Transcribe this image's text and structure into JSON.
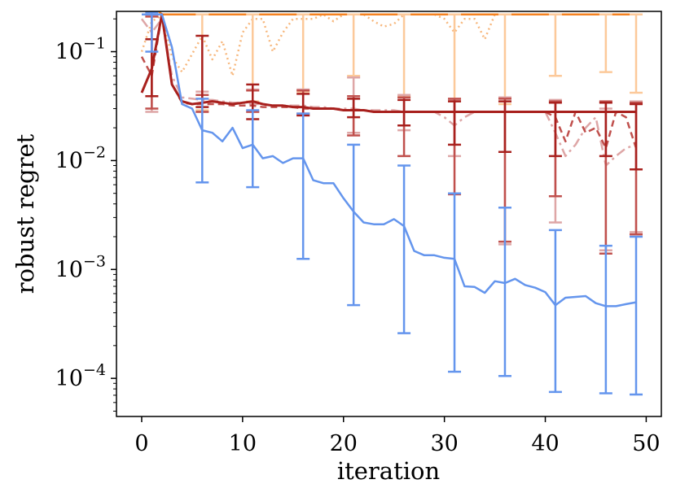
{
  "chart_data": {
    "type": "line",
    "xlabel": "iteration",
    "ylabel": "robust regret",
    "xlim": [
      -2.5,
      51.5
    ],
    "ylim_log10": [
      -4.35,
      -0.63
    ],
    "y_scale": "log",
    "x_ticks": [
      0,
      10,
      20,
      30,
      40,
      50
    ],
    "x_tick_labels": [
      "0",
      "10",
      "20",
      "30",
      "40",
      "50"
    ],
    "y_ticks": [
      {
        "value": 0.1,
        "base": "10",
        "exponent": "−1"
      },
      {
        "value": 0.01,
        "base": "10",
        "exponent": "−2"
      },
      {
        "value": 0.001,
        "base": "10",
        "exponent": "−3"
      },
      {
        "value": 0.0001,
        "base": "10",
        "exponent": "−4"
      }
    ],
    "series": [
      {
        "name": "orange-dotted",
        "color": "#f7b77c",
        "dash": "2 4",
        "width": 2.5,
        "x": [
          0,
          1,
          2,
          3,
          4,
          5,
          6,
          7,
          8,
          9,
          10,
          11,
          12,
          13,
          14,
          15,
          16,
          17,
          18,
          19,
          20,
          21,
          22,
          23,
          24,
          25,
          26,
          27,
          28,
          29,
          30,
          31,
          32,
          33,
          34,
          35,
          36,
          37,
          38,
          39,
          40,
          41,
          42,
          43,
          44,
          45,
          46,
          47,
          48,
          49
        ],
        "y": [
          0.1,
          0.19,
          0.215,
          0.09,
          0.065,
          0.095,
          0.14,
          0.085,
          0.125,
          0.06,
          0.15,
          0.2,
          0.2,
          0.1,
          0.15,
          0.2,
          0.2,
          0.2,
          0.22,
          0.19,
          0.22,
          0.22,
          0.22,
          0.19,
          0.17,
          0.18,
          0.22,
          0.22,
          0.22,
          0.22,
          0.2,
          0.15,
          0.2,
          0.2,
          0.13,
          0.22,
          0.22,
          0.22,
          0.22,
          0.22,
          0.22,
          0.22,
          0.22,
          0.22,
          0.22,
          0.22,
          0.22,
          0.22,
          0.22,
          0.22
        ],
        "errorbars": []
      },
      {
        "name": "orange-solid",
        "color": "#f58220",
        "dash": "",
        "width": 2.5,
        "x": [
          0,
          1,
          2,
          3,
          4,
          5,
          6,
          7,
          8,
          9,
          10,
          11,
          12,
          13,
          14,
          15,
          16,
          17,
          18,
          19,
          20,
          21,
          22,
          23,
          24,
          25,
          26,
          27,
          28,
          29,
          30,
          31,
          32,
          33,
          34,
          35,
          36,
          37,
          38,
          39,
          40,
          41,
          42,
          43,
          44,
          45,
          46,
          47,
          48,
          49
        ],
        "y": [
          0.24,
          0.27,
          0.22,
          0.22,
          0.22,
          0.22,
          0.22,
          0.22,
          0.22,
          0.22,
          0.22,
          0.22,
          0.22,
          0.22,
          0.22,
          0.22,
          0.22,
          0.22,
          0.22,
          0.22,
          0.22,
          0.22,
          0.22,
          0.22,
          0.22,
          0.22,
          0.22,
          0.22,
          0.22,
          0.22,
          0.22,
          0.22,
          0.22,
          0.22,
          0.22,
          0.22,
          0.22,
          0.22,
          0.22,
          0.22,
          0.22,
          0.22,
          0.22,
          0.22,
          0.22,
          0.22,
          0.22,
          0.22,
          0.22,
          0.22
        ],
        "errorbars": [
          {
            "x": 1,
            "lo": 0.24,
            "hi": 0.29
          }
        ]
      },
      {
        "name": "orange-light-errorbars",
        "color": "#fcc99a",
        "dash": "none",
        "width": 2.5,
        "x": [],
        "y": [],
        "errorbars": [
          {
            "x": 6,
            "lo": 0.029,
            "hi": 0.22
          },
          {
            "x": 11,
            "lo": 0.035,
            "hi": 0.22
          },
          {
            "x": 16,
            "lo": 0.043,
            "hi": 0.22
          },
          {
            "x": 21,
            "lo": 0.06,
            "hi": 0.22
          },
          {
            "x": 26,
            "lo": 0.039,
            "hi": 0.22
          },
          {
            "x": 31,
            "lo": 0.035,
            "hi": 0.22
          },
          {
            "x": 36,
            "lo": 0.033,
            "hi": 0.22
          },
          {
            "x": 41,
            "lo": 0.06,
            "hi": 0.22
          },
          {
            "x": 46,
            "lo": 0.065,
            "hi": 0.22
          },
          {
            "x": 49,
            "lo": 0.042,
            "hi": 0.22
          }
        ]
      },
      {
        "name": "pink-dashdot",
        "color": "#dea6a6",
        "dash": "12 5 3 5",
        "width": 2.5,
        "x": [
          0,
          1,
          2,
          3,
          4,
          5,
          6,
          7,
          8,
          9,
          10,
          11,
          12,
          13,
          14,
          15,
          16,
          17,
          18,
          19,
          20,
          21,
          22,
          23,
          24,
          25,
          26,
          27,
          28,
          29,
          30,
          31,
          32,
          33,
          34,
          35,
          36,
          37,
          38,
          39,
          40,
          41,
          42,
          43,
          44,
          45,
          46,
          47,
          48,
          49
        ],
        "y": [
          0.2,
          0.15,
          0.2,
          0.06,
          0.038,
          0.037,
          0.036,
          0.036,
          0.035,
          0.034,
          0.034,
          0.033,
          0.033,
          0.032,
          0.032,
          0.032,
          0.032,
          0.031,
          0.031,
          0.03,
          0.03,
          0.03,
          0.029,
          0.029,
          0.029,
          0.029,
          0.028,
          0.028,
          0.028,
          0.028,
          0.025,
          0.021,
          0.025,
          0.028,
          0.028,
          0.028,
          0.028,
          0.028,
          0.028,
          0.028,
          0.028,
          0.018,
          0.011,
          0.014,
          0.02,
          0.025,
          0.009,
          0.011,
          0.013,
          0.014
        ],
        "errorbars": [
          {
            "x": 1,
            "lo": 0.028,
            "hi": 0.22
          },
          {
            "x": 6,
            "lo": 0.028,
            "hi": 0.043
          },
          {
            "x": 11,
            "lo": 0.028,
            "hi": 0.045
          },
          {
            "x": 16,
            "lo": 0.026,
            "hi": 0.045
          },
          {
            "x": 21,
            "lo": 0.018,
            "hi": 0.058
          },
          {
            "x": 26,
            "lo": 0.019,
            "hi": 0.04
          },
          {
            "x": 31,
            "lo": 0.011,
            "hi": 0.036
          },
          {
            "x": 36,
            "lo": 0.0017,
            "hi": 0.038
          },
          {
            "x": 41,
            "lo": 0.0027,
            "hi": 0.036
          },
          {
            "x": 46,
            "lo": 0.0015,
            "hi": 0.03
          },
          {
            "x": 49,
            "lo": 0.0022,
            "hi": 0.035
          }
        ]
      },
      {
        "name": "red-dashed",
        "color": "#c0504d",
        "dash": "8 5",
        "width": 2.5,
        "x": [
          0,
          1,
          2,
          3,
          4,
          5,
          6,
          7,
          8,
          9,
          10,
          11,
          12,
          13,
          14,
          15,
          16,
          17,
          18,
          19,
          20,
          21,
          22,
          23,
          24,
          25,
          26,
          27,
          28,
          29,
          30,
          31,
          32,
          33,
          34,
          35,
          36,
          37,
          38,
          39,
          40,
          41,
          42,
          43,
          44,
          45,
          46,
          47,
          48,
          49
        ],
        "y": [
          0.09,
          0.06,
          0.22,
          0.05,
          0.034,
          0.033,
          0.033,
          0.033,
          0.033,
          0.032,
          0.032,
          0.032,
          0.031,
          0.031,
          0.031,
          0.031,
          0.03,
          0.03,
          0.03,
          0.03,
          0.029,
          0.029,
          0.029,
          0.028,
          0.028,
          0.028,
          0.028,
          0.028,
          0.028,
          0.028,
          0.028,
          0.028,
          0.028,
          0.028,
          0.028,
          0.028,
          0.028,
          0.028,
          0.028,
          0.028,
          0.028,
          0.025,
          0.015,
          0.028,
          0.018,
          0.02,
          0.013,
          0.028,
          0.025,
          0.013
        ],
        "errorbars": [
          {
            "x": 1,
            "lo": 0.03,
            "hi": 0.21
          },
          {
            "x": 6,
            "lo": 0.028,
            "hi": 0.04
          },
          {
            "x": 11,
            "lo": 0.028,
            "hi": 0.044
          },
          {
            "x": 16,
            "lo": 0.027,
            "hi": 0.044
          },
          {
            "x": 21,
            "lo": 0.017,
            "hi": 0.039
          },
          {
            "x": 26,
            "lo": 0.011,
            "hi": 0.038
          },
          {
            "x": 31,
            "lo": 0.0049,
            "hi": 0.037
          },
          {
            "x": 36,
            "lo": 0.0018,
            "hi": 0.037
          },
          {
            "x": 41,
            "lo": 0.0047,
            "hi": 0.035
          },
          {
            "x": 46,
            "lo": 0.0014,
            "hi": 0.035
          },
          {
            "x": 49,
            "lo": 0.0021,
            "hi": 0.034
          }
        ]
      },
      {
        "name": "darkred-solid",
        "color": "#a8201d",
        "dash": "",
        "width": 3,
        "x": [
          0,
          1,
          2,
          3,
          4,
          5,
          6,
          7,
          8,
          9,
          10,
          11,
          12,
          13,
          14,
          15,
          16,
          17,
          18,
          19,
          20,
          21,
          22,
          23,
          24,
          25,
          26,
          27,
          28,
          29,
          30,
          31,
          32,
          33,
          34,
          35,
          36,
          37,
          38,
          39,
          40,
          41,
          42,
          43,
          44,
          45,
          46,
          47,
          48,
          49
        ],
        "y": [
          0.042,
          0.07,
          0.22,
          0.05,
          0.035,
          0.033,
          0.034,
          0.035,
          0.034,
          0.033,
          0.034,
          0.035,
          0.033,
          0.032,
          0.032,
          0.031,
          0.031,
          0.03,
          0.03,
          0.03,
          0.029,
          0.029,
          0.029,
          0.028,
          0.028,
          0.028,
          0.028,
          0.028,
          0.028,
          0.028,
          0.028,
          0.028,
          0.028,
          0.028,
          0.028,
          0.028,
          0.028,
          0.028,
          0.028,
          0.028,
          0.028,
          0.028,
          0.028,
          0.028,
          0.028,
          0.028,
          0.028,
          0.028,
          0.028,
          0.028
        ],
        "errorbars": [
          {
            "x": 1,
            "lo": 0.039,
            "hi": 0.13
          },
          {
            "x": 6,
            "lo": 0.031,
            "hi": 0.14
          },
          {
            "x": 11,
            "lo": 0.024,
            "hi": 0.05
          },
          {
            "x": 16,
            "lo": 0.026,
            "hi": 0.041
          },
          {
            "x": 21,
            "lo": 0.025,
            "hi": 0.037
          },
          {
            "x": 26,
            "lo": 0.021,
            "hi": 0.036
          },
          {
            "x": 31,
            "lo": 0.014,
            "hi": 0.035
          },
          {
            "x": 36,
            "lo": 0.012,
            "hi": 0.035
          },
          {
            "x": 41,
            "lo": 0.011,
            "hi": 0.034
          },
          {
            "x": 46,
            "lo": 0.011,
            "hi": 0.034
          },
          {
            "x": 49,
            "lo": 0.0083,
            "hi": 0.033
          }
        ]
      },
      {
        "name": "blue-solid",
        "color": "#6495ed",
        "dash": "",
        "width": 2.5,
        "x": [
          0,
          1,
          2,
          3,
          4,
          5,
          6,
          7,
          8,
          9,
          10,
          11,
          12,
          13,
          14,
          15,
          16,
          17,
          18,
          19,
          20,
          21,
          22,
          23,
          24,
          25,
          26,
          27,
          28,
          29,
          30,
          31,
          32,
          33,
          34,
          35,
          36,
          37,
          38,
          39,
          40,
          41,
          42,
          43,
          44,
          45,
          46,
          47,
          48,
          49
        ],
        "y": [
          0.22,
          0.22,
          0.22,
          0.11,
          0.033,
          0.03,
          0.019,
          0.018,
          0.015,
          0.02,
          0.013,
          0.014,
          0.0105,
          0.011,
          0.0095,
          0.0105,
          0.0105,
          0.0066,
          0.0062,
          0.0062,
          0.0045,
          0.0034,
          0.0027,
          0.0026,
          0.0026,
          0.0029,
          0.0025,
          0.00148,
          0.00135,
          0.00135,
          0.00128,
          0.00125,
          0.0007,
          0.00069,
          0.00061,
          0.00078,
          0.00075,
          0.00082,
          0.00072,
          0.00068,
          0.00062,
          0.00047,
          0.00055,
          0.00056,
          0.00057,
          0.00049,
          0.00046,
          0.00046,
          0.00048,
          0.0005
        ],
        "errorbars": [
          {
            "x": 1,
            "lo": 0.1,
            "hi": 0.23
          },
          {
            "x": 6,
            "lo": 0.0063,
            "hi": 0.037
          },
          {
            "x": 11,
            "lo": 0.0057,
            "hi": 0.029
          },
          {
            "x": 16,
            "lo": 0.00125,
            "hi": 0.027
          },
          {
            "x": 21,
            "lo": 0.00047,
            "hi": 0.014
          },
          {
            "x": 26,
            "lo": 0.00026,
            "hi": 0.009
          },
          {
            "x": 31,
            "lo": 0.000115,
            "hi": 0.005
          },
          {
            "x": 36,
            "lo": 0.000105,
            "hi": 0.0037
          },
          {
            "x": 41,
            "lo": 7.5e-05,
            "hi": 0.0023
          },
          {
            "x": 46,
            "lo": 7.3e-05,
            "hi": 0.00165
          },
          {
            "x": 49,
            "lo": 7.1e-05,
            "hi": 0.002
          }
        ]
      }
    ]
  }
}
